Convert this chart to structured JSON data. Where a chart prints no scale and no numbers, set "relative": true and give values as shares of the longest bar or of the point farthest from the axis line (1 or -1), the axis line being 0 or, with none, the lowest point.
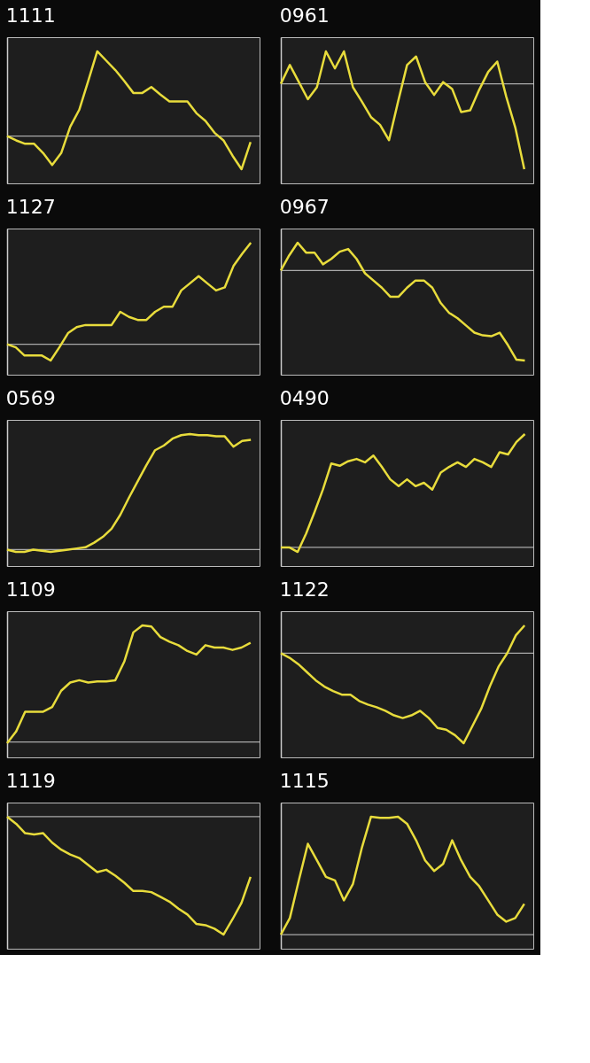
{
  "chart_data": [
    {
      "type": "line",
      "title": "1111",
      "relative": true,
      "categories": [
        null,
        null,
        null,
        null,
        null,
        null,
        null,
        null,
        null,
        null,
        null,
        null,
        null,
        null,
        null,
        null,
        null,
        null,
        null,
        null,
        null,
        null,
        null,
        null,
        null,
        null,
        null,
        null
      ],
      "series": [
        {
          "color": "#e8dc3c",
          "values": [
            0,
            -0.05,
            -0.09,
            -0.09,
            -0.2,
            -0.34,
            -0.2,
            0.11,
            0.31,
            0.65,
            1,
            0.89,
            0.78,
            0.65,
            0.51,
            0.51,
            0.58,
            0.49,
            0.41,
            0.41,
            0.41,
            0.27,
            0.18,
            0.04,
            -0.05,
            -0.23,
            -0.39,
            -0.07
          ]
        }
      ]
    },
    {
      "type": "line",
      "title": "0961",
      "relative": true,
      "categories": [
        null,
        null,
        null,
        null,
        null,
        null,
        null,
        null,
        null,
        null,
        null,
        null,
        null,
        null,
        null,
        null,
        null,
        null,
        null,
        null,
        null,
        null,
        null,
        null,
        null,
        null,
        null,
        null
      ],
      "series": [
        {
          "color": "#e8dc3c",
          "values": [
            0,
            0.22,
            0.02,
            -0.18,
            -0.04,
            0.38,
            0.18,
            0.38,
            -0.04,
            -0.21,
            -0.39,
            -0.48,
            -0.66,
            -0.21,
            0.22,
            0.32,
            0.02,
            -0.13,
            0.02,
            -0.06,
            -0.33,
            -0.31,
            -0.07,
            0.14,
            0.26,
            -0.15,
            -0.51,
            -1
          ]
        }
      ]
    },
    {
      "type": "line",
      "title": "1127",
      "relative": true,
      "categories": [
        null,
        null,
        null,
        null,
        null,
        null,
        null,
        null,
        null,
        null,
        null,
        null,
        null,
        null,
        null,
        null,
        null,
        null,
        null,
        null,
        null,
        null,
        null,
        null,
        null,
        null,
        null,
        null,
        null
      ],
      "series": [
        {
          "color": "#e8dc3c",
          "values": [
            0,
            -0.03,
            -0.11,
            -0.11,
            -0.11,
            -0.16,
            -0.03,
            0.11,
            0.17,
            0.19,
            0.19,
            0.19,
            0.19,
            0.32,
            0.27,
            0.24,
            0.24,
            0.32,
            0.37,
            0.37,
            0.53,
            0.6,
            0.67,
            0.6,
            0.53,
            0.56,
            0.77,
            0.89,
            1
          ]
        }
      ]
    },
    {
      "type": "line",
      "title": "0967",
      "relative": true,
      "categories": [
        null,
        null,
        null,
        null,
        null,
        null,
        null,
        null,
        null,
        null,
        null,
        null,
        null,
        null,
        null,
        null,
        null,
        null,
        null,
        null,
        null,
        null,
        null,
        null,
        null,
        null,
        null,
        null,
        null,
        null
      ],
      "series": [
        {
          "color": "#e8dc3c",
          "values": [
            0,
            0.17,
            0.31,
            0.2,
            0.2,
            0.07,
            0.13,
            0.21,
            0.24,
            0.13,
            -0.03,
            -0.11,
            -0.19,
            -0.29,
            -0.29,
            -0.19,
            -0.11,
            -0.11,
            -0.19,
            -0.36,
            -0.47,
            -0.53,
            -0.61,
            -0.69,
            -0.72,
            -0.73,
            -0.69,
            -0.83,
            -0.99,
            -1
          ]
        }
      ]
    },
    {
      "type": "line",
      "title": "0569",
      "relative": true,
      "categories": [
        null,
        null,
        null,
        null,
        null,
        null,
        null,
        null,
        null,
        null,
        null,
        null,
        null,
        null,
        null,
        null,
        null,
        null,
        null,
        null,
        null,
        null,
        null,
        null,
        null,
        null,
        null,
        null,
        null
      ],
      "series": [
        {
          "color": "#e8dc3c",
          "values": [
            0,
            -0.02,
            -0.02,
            0,
            -0.01,
            -0.02,
            -0.01,
            0,
            0.01,
            0.02,
            0.06,
            0.11,
            0.18,
            0.3,
            0.45,
            0.59,
            0.73,
            0.86,
            0.9,
            0.96,
            0.99,
            1,
            0.99,
            0.99,
            0.98,
            0.98,
            0.89,
            0.94,
            0.95
          ]
        }
      ]
    },
    {
      "type": "line",
      "title": "0490",
      "relative": true,
      "categories": [
        null,
        null,
        null,
        null,
        null,
        null,
        null,
        null,
        null,
        null,
        null,
        null,
        null,
        null,
        null,
        null,
        null,
        null,
        null,
        null,
        null,
        null,
        null,
        null,
        null,
        null,
        null,
        null,
        null,
        null
      ],
      "series": [
        {
          "color": "#e8dc3c",
          "values": [
            0,
            0,
            -0.04,
            0.12,
            0.31,
            0.51,
            0.74,
            0.72,
            0.76,
            0.78,
            0.75,
            0.81,
            0.71,
            0.6,
            0.54,
            0.6,
            0.54,
            0.57,
            0.51,
            0.66,
            0.71,
            0.75,
            0.71,
            0.78,
            0.75,
            0.71,
            0.84,
            0.82,
            0.93,
            1
          ]
        }
      ]
    },
    {
      "type": "line",
      "title": "1109",
      "relative": true,
      "categories": [
        null,
        null,
        null,
        null,
        null,
        null,
        null,
        null,
        null,
        null,
        null,
        null,
        null,
        null,
        null,
        null,
        null,
        null,
        null,
        null,
        null,
        null,
        null,
        null,
        null,
        null,
        null,
        null
      ],
      "series": [
        {
          "color": "#e8dc3c",
          "values": [
            -0.01,
            0.09,
            0.26,
            0.26,
            0.26,
            0.3,
            0.44,
            0.51,
            0.53,
            0.51,
            0.52,
            0.52,
            0.53,
            0.69,
            0.94,
            1,
            0.99,
            0.9,
            0.86,
            0.83,
            0.78,
            0.75,
            0.83,
            0.81,
            0.81,
            0.79,
            0.81,
            0.85
          ]
        }
      ]
    },
    {
      "type": "line",
      "title": "1122",
      "relative": true,
      "categories": [
        null,
        null,
        null,
        null,
        null,
        null,
        null,
        null,
        null,
        null,
        null,
        null,
        null,
        null,
        null,
        null,
        null,
        null,
        null,
        null,
        null,
        null,
        null,
        null,
        null,
        null,
        null,
        null,
        null
      ],
      "series": [
        {
          "color": "#e8dc3c",
          "values": [
            0,
            -0.05,
            -0.12,
            -0.21,
            -0.3,
            -0.37,
            -0.42,
            -0.46,
            -0.46,
            -0.53,
            -0.57,
            -0.6,
            -0.64,
            -0.69,
            -0.72,
            -0.69,
            -0.64,
            -0.72,
            -0.83,
            -0.85,
            -0.91,
            -1,
            -0.81,
            -0.62,
            -0.37,
            -0.15,
            0,
            0.2,
            0.31
          ]
        }
      ]
    },
    {
      "type": "line",
      "title": "1119",
      "relative": true,
      "categories": [
        null,
        null,
        null,
        null,
        null,
        null,
        null,
        null,
        null,
        null,
        null,
        null,
        null,
        null,
        null,
        null,
        null,
        null,
        null,
        null,
        null,
        null,
        null,
        null,
        null,
        null,
        null,
        null
      ],
      "series": [
        {
          "color": "#e8dc3c",
          "values": [
            0,
            -0.06,
            -0.14,
            -0.15,
            -0.14,
            -0.22,
            -0.28,
            -0.32,
            -0.35,
            -0.41,
            -0.47,
            -0.45,
            -0.5,
            -0.56,
            -0.63,
            -0.63,
            -0.64,
            -0.68,
            -0.72,
            -0.78,
            -0.83,
            -0.91,
            -0.92,
            -0.95,
            -1,
            -0.87,
            -0.73,
            -0.51
          ]
        }
      ]
    },
    {
      "type": "line",
      "title": "1115",
      "relative": true,
      "categories": [
        null,
        null,
        null,
        null,
        null,
        null,
        null,
        null,
        null,
        null,
        null,
        null,
        null,
        null,
        null,
        null,
        null,
        null,
        null,
        null,
        null,
        null,
        null,
        null,
        null,
        null,
        null,
        null
      ],
      "series": [
        {
          "color": "#e8dc3c",
          "values": [
            0,
            0.14,
            0.46,
            0.77,
            0.63,
            0.49,
            0.46,
            0.29,
            0.43,
            0.74,
            1,
            0.99,
            0.99,
            1,
            0.94,
            0.8,
            0.63,
            0.54,
            0.6,
            0.8,
            0.63,
            0.49,
            0.41,
            0.29,
            0.17,
            0.11,
            0.14,
            0.26
          ]
        }
      ]
    }
  ]
}
